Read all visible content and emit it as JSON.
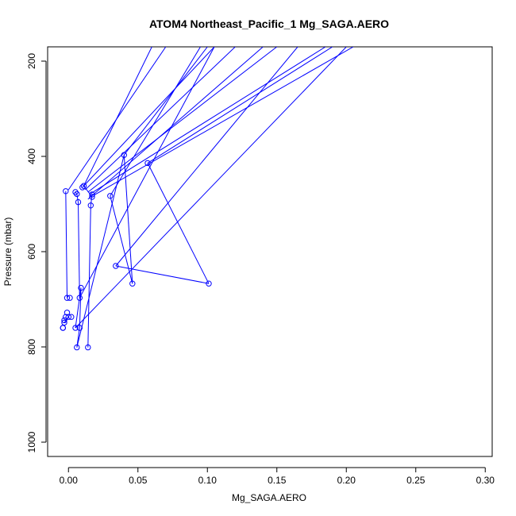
{
  "chart_data": {
    "type": "scatter",
    "title": "ATOM4 Northeast_Pacific_1 Mg_SAGA.AERO",
    "xlabel": "Mg_SAGA.AERO",
    "ylabel": "Pressure (mbar)",
    "xlim": [
      -0.015,
      0.305
    ],
    "ylim": [
      1030,
      170
    ],
    "y_reversed": true,
    "xticks": [
      0.0,
      0.05,
      0.1,
      0.15,
      0.2,
      0.25,
      0.3
    ],
    "xtick_labels": [
      "0.00",
      "0.05",
      "0.10",
      "0.15",
      "0.20",
      "0.25",
      "0.30"
    ],
    "yticks": [
      200,
      400,
      600,
      800,
      1000
    ],
    "ytick_labels": [
      "200",
      "400",
      "600",
      "800",
      "1000"
    ],
    "grid": false,
    "legend": "none",
    "color": "#0000ff",
    "series": [
      {
        "points": [
          [
            -0.002,
            473
          ],
          [
            0.005,
            475
          ],
          [
            0.006,
            479
          ],
          [
            0.007,
            496
          ],
          [
            0.008,
            697
          ],
          [
            0.009,
            676
          ],
          [
            0.008,
            760
          ],
          [
            0.006,
            801
          ],
          [
            0.014,
            801
          ],
          [
            0.016,
            503
          ],
          [
            0.017,
            480
          ],
          [
            0.017,
            485
          ],
          [
            0.011,
            462
          ],
          [
            0.03,
            483
          ],
          [
            0.046,
            667
          ],
          [
            0.04,
            397
          ],
          [
            0.034,
            630
          ],
          [
            0.101,
            667
          ],
          [
            0.057,
            414
          ],
          [
            0.01,
            465
          ],
          [
            -0.001,
            697
          ],
          [
            0.001,
            697
          ],
          [
            -0.002,
            737
          ],
          [
            0.0,
            737
          ],
          [
            0.002,
            737
          ],
          [
            -0.003,
            744
          ],
          [
            -0.003,
            749
          ],
          [
            -0.004,
            760
          ],
          [
            -0.004,
            760
          ],
          [
            0.005,
            760
          ],
          [
            -0.001,
            728
          ]
        ],
        "segments": [
          [
            [
              0.005,
              475
            ],
            [
              0.006,
              479
            ]
          ],
          [
            [
              0.006,
              479
            ],
            [
              0.007,
              496
            ]
          ],
          [
            [
              0.007,
              496
            ],
            [
              0.008,
              697
            ]
          ],
          [
            [
              0.009,
              676
            ],
            [
              0.008,
              760
            ]
          ],
          [
            [
              0.008,
              760
            ],
            [
              0.006,
              801
            ]
          ],
          [
            [
              0.006,
              801
            ],
            [
              0.04,
              397
            ]
          ],
          [
            [
              0.04,
              397
            ],
            [
              0.046,
              667
            ]
          ],
          [
            [
              0.03,
              483
            ],
            [
              0.046,
              667
            ]
          ],
          [
            [
              0.014,
              801
            ],
            [
              0.016,
              503
            ]
          ],
          [
            [
              0.016,
              503
            ],
            [
              0.017,
              480
            ]
          ],
          [
            [
              0.034,
              630
            ],
            [
              0.101,
              667
            ]
          ],
          [
            [
              0.101,
              667
            ],
            [
              0.057,
              414
            ]
          ],
          [
            [
              0.017,
              485
            ],
            [
              0.011,
              462
            ]
          ],
          [
            [
              -0.002,
              473
            ],
            [
              -0.001,
              697
            ]
          ],
          [
            [
              0.0,
              737
            ],
            [
              -0.003,
              749
            ]
          ],
          [
            [
              0.009,
              676
            ],
            [
              0.005,
              760
            ]
          ],
          [
            [
              0.0,
              470
            ],
            [
              0.07,
              170
            ]
          ],
          [
            [
              0.01,
              465
            ],
            [
              0.105,
              170
            ]
          ],
          [
            [
              0.012,
              470
            ],
            [
              0.12,
              170
            ]
          ],
          [
            [
              0.014,
              475
            ],
            [
              0.15,
              170
            ]
          ],
          [
            [
              0.016,
              478
            ],
            [
              0.185,
              170
            ]
          ],
          [
            [
              0.018,
              482
            ],
            [
              0.205,
              170
            ]
          ],
          [
            [
              0.014,
              490
            ],
            [
              0.14,
              170
            ]
          ],
          [
            [
              0.03,
              483
            ],
            [
              0.095,
              170
            ]
          ],
          [
            [
              0.04,
              397
            ],
            [
              0.1,
              170
            ]
          ],
          [
            [
              0.057,
              414
            ],
            [
              0.19,
              170
            ]
          ],
          [
            [
              0.011,
              462
            ],
            [
              0.06,
              170
            ]
          ],
          [
            [
              0.034,
              630
            ],
            [
              0.165,
              170
            ]
          ],
          [
            [
              0.005,
              760
            ],
            [
              0.2,
              170
            ]
          ],
          [
            [
              0.008,
              697
            ],
            [
              0.105,
              170
            ]
          ]
        ]
      }
    ]
  }
}
